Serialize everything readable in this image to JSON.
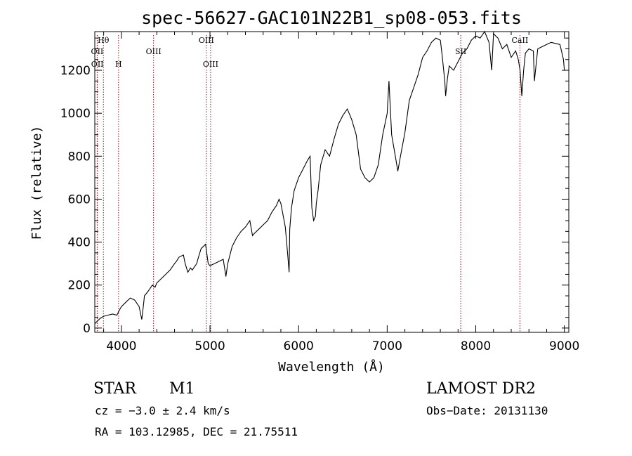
{
  "chart_data": {
    "type": "line",
    "title": "spec-56627-GAC101N22B1_sp08-053.fits",
    "xlabel": "Wavelength (Å)",
    "ylabel": "Flux (relative)",
    "xlim": [
      3700,
      9050
    ],
    "ylim": [
      -20,
      1380
    ],
    "x_ticks": [
      4000,
      5000,
      6000,
      7000,
      8000,
      9000
    ],
    "y_ticks": [
      0,
      200,
      400,
      600,
      800,
      1000,
      1200
    ],
    "grid": false,
    "series": [
      {
        "color": "#000000",
        "x": [
          3700,
          3760,
          3800,
          3850,
          3900,
          3950,
          3980,
          4000,
          4050,
          4100,
          4150,
          4200,
          4230,
          4250,
          4260,
          4300,
          4350,
          4380,
          4400,
          4450,
          4500,
          4550,
          4600,
          4620,
          4650,
          4700,
          4720,
          4750,
          4780,
          4800,
          4850,
          4870,
          4900,
          4950,
          4980,
          5000,
          5050,
          5100,
          5150,
          5180,
          5200,
          5250,
          5300,
          5350,
          5400,
          5450,
          5480,
          5500,
          5550,
          5600,
          5650,
          5700,
          5750,
          5780,
          5800,
          5850,
          5880,
          5893,
          5900,
          5920,
          5950,
          6000,
          6050,
          6100,
          6130,
          6150,
          6170,
          6190,
          6200,
          6220,
          6250,
          6300,
          6350,
          6400,
          6450,
          6500,
          6550,
          6600,
          6650,
          6700,
          6750,
          6800,
          6850,
          6900,
          6950,
          7000,
          7020,
          7050,
          7100,
          7120,
          7150,
          7200,
          7250,
          7300,
          7350,
          7400,
          7450,
          7500,
          7550,
          7600,
          7620,
          7650,
          7660,
          7680,
          7700,
          7750,
          7800,
          7850,
          7900,
          7950,
          8000,
          8050,
          8100,
          8150,
          8180,
          8200,
          8250,
          8300,
          8350,
          8400,
          8450,
          8480,
          8500,
          8520,
          8540,
          8560,
          8600,
          8650,
          8662,
          8700,
          8750,
          8800,
          8850,
          8900,
          8950,
          8990,
          9000
        ],
        "y": [
          20,
          45,
          55,
          60,
          65,
          60,
          85,
          100,
          120,
          140,
          130,
          100,
          40,
          110,
          150,
          170,
          200,
          190,
          210,
          230,
          250,
          270,
          300,
          310,
          330,
          340,
          300,
          260,
          280,
          270,
          300,
          330,
          370,
          390,
          300,
          290,
          300,
          310,
          320,
          240,
          300,
          380,
          420,
          450,
          470,
          500,
          430,
          440,
          460,
          480,
          500,
          540,
          570,
          600,
          580,
          470,
          330,
          260,
          460,
          560,
          640,
          700,
          740,
          780,
          800,
          560,
          500,
          520,
          580,
          640,
          760,
          830,
          800,
          880,
          950,
          990,
          1020,
          970,
          900,
          740,
          700,
          680,
          700,
          760,
          900,
          1000,
          1150,
          900,
          780,
          730,
          800,
          910,
          1060,
          1120,
          1180,
          1260,
          1290,
          1330,
          1350,
          1340,
          1270,
          1150,
          1080,
          1160,
          1220,
          1200,
          1240,
          1280,
          1300,
          1340,
          1360,
          1350,
          1380,
          1330,
          1200,
          1370,
          1350,
          1300,
          1320,
          1260,
          1290,
          1250,
          1200,
          1080,
          1200,
          1280,
          1300,
          1290,
          1150,
          1300,
          1310,
          1320,
          1330,
          1325,
          1320,
          1250,
          1200
        ]
      }
    ],
    "line_markers": [
      {
        "label": "OII",
        "x": 3727,
        "row": 1
      },
      {
        "label": "OII",
        "x": 3729,
        "row": 2
      },
      {
        "label": "Hθ",
        "x": 3797,
        "row": 0
      },
      {
        "label": "H",
        "x": 3968,
        "row": 2
      },
      {
        "label": "OIII",
        "x": 4363,
        "row": 1
      },
      {
        "label": "OIII",
        "x": 4959,
        "row": 0
      },
      {
        "label": "OIII",
        "x": 5007,
        "row": 2
      },
      {
        "label": "SII",
        "x": 7830,
        "row": 1
      },
      {
        "label": "CaII",
        "x": 8498,
        "row": 0
      }
    ]
  },
  "info": {
    "object_class": "STAR",
    "subclass": "M1",
    "survey": "LAMOST DR2",
    "cz": "cz = −3.0 ± 2.4 km/s",
    "obs_date": "Obs−Date: 20131130",
    "coords": "RA = 103.12985, DEC =  21.75511"
  }
}
